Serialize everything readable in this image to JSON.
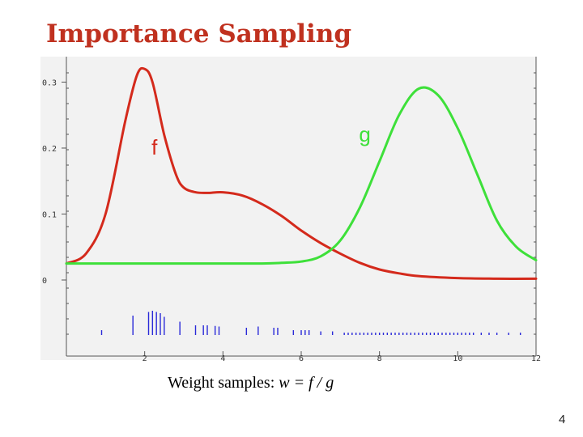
{
  "slide": {
    "title": "Importance Sampling",
    "caption_prefix": "Weight samples: ",
    "caption_formula": "w = f / g",
    "page_number": "4"
  },
  "chart_data": {
    "type": "line",
    "xlim": [
      0,
      12.0
    ],
    "ylim": [
      0,
      0.33
    ],
    "x_ticks": [
      2,
      4,
      6,
      8,
      10,
      12
    ],
    "x_tick_labels": [
      "2",
      "4",
      "6",
      "8",
      "10",
      "12"
    ],
    "y_ticks": [
      0,
      0.1,
      0.2,
      0.3
    ],
    "y_tick_labels": [
      "0",
      "0.1",
      "0.2",
      "0.3"
    ],
    "grid": false,
    "series": [
      {
        "name": "f",
        "color": "#d42a1c",
        "x": [
          0,
          0.5,
          1.0,
          1.5,
          1.8,
          2.0,
          2.2,
          2.5,
          2.8,
          3.0,
          3.3,
          3.6,
          4.0,
          4.5,
          5.0,
          5.5,
          6.0,
          6.5,
          7.0,
          7.5,
          8.0,
          8.5,
          9.0,
          10.0,
          11.0,
          12.0
        ],
        "y": [
          0.025,
          0.04,
          0.1,
          0.24,
          0.31,
          0.32,
          0.3,
          0.22,
          0.16,
          0.14,
          0.133,
          0.132,
          0.133,
          0.128,
          0.115,
          0.097,
          0.075,
          0.056,
          0.04,
          0.026,
          0.016,
          0.01,
          0.006,
          0.003,
          0.002,
          0.002
        ]
      },
      {
        "name": "g",
        "color": "#3ee03a",
        "x": [
          0,
          3.0,
          4.0,
          5.0,
          5.5,
          6.0,
          6.5,
          7.0,
          7.5,
          8.0,
          8.5,
          9.0,
          9.5,
          10.0,
          10.5,
          11.0,
          11.5,
          12.0
        ],
        "y": [
          0.025,
          0.025,
          0.025,
          0.025,
          0.026,
          0.028,
          0.036,
          0.06,
          0.11,
          0.18,
          0.25,
          0.29,
          0.28,
          0.23,
          0.16,
          0.09,
          0.05,
          0.03
        ]
      }
    ],
    "samples": {
      "color": "#2a2ad8",
      "x": [
        0.9,
        1.7,
        2.1,
        2.2,
        2.3,
        2.4,
        2.5,
        2.9,
        3.3,
        3.5,
        3.6,
        3.8,
        3.9,
        4.6,
        4.9,
        5.3,
        5.4,
        5.8,
        6.0,
        6.1,
        6.2,
        6.5,
        6.8,
        7.1,
        7.2,
        7.3,
        7.4,
        7.5,
        7.6,
        7.7,
        7.8,
        7.9,
        8.0,
        8.1,
        8.2,
        8.3,
        8.4,
        8.5,
        8.6,
        8.7,
        8.8,
        8.9,
        9.0,
        9.1,
        9.2,
        9.3,
        9.4,
        9.5,
        9.6,
        9.7,
        9.8,
        9.9,
        10.0,
        10.1,
        10.2,
        10.3,
        10.4,
        10.6,
        10.8,
        11.0,
        11.3,
        11.6
      ],
      "heights": [
        0.4,
        1.6,
        1.9,
        2.0,
        1.9,
        1.8,
        1.5,
        1.1,
        0.8,
        0.8,
        0.8,
        0.75,
        0.7,
        0.6,
        0.7,
        0.6,
        0.6,
        0.4,
        0.4,
        0.4,
        0.4,
        0.3,
        0.3,
        0.2,
        0.2,
        0.2,
        0.2,
        0.2,
        0.2,
        0.2,
        0.2,
        0.2,
        0.2,
        0.2,
        0.2,
        0.2,
        0.2,
        0.2,
        0.2,
        0.2,
        0.2,
        0.2,
        0.2,
        0.2,
        0.2,
        0.2,
        0.2,
        0.2,
        0.2,
        0.2,
        0.2,
        0.2,
        0.2,
        0.2,
        0.2,
        0.2,
        0.2,
        0.2,
        0.2,
        0.2,
        0.2,
        0.2
      ]
    }
  }
}
